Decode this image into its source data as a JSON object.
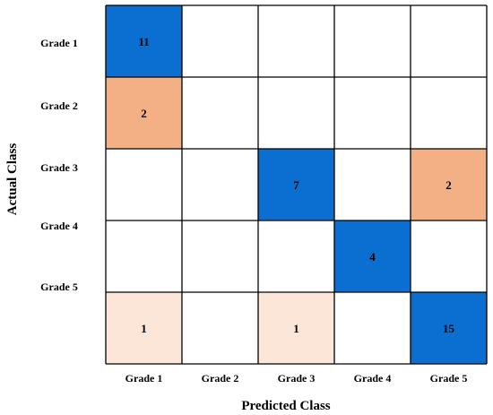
{
  "chart_data": {
    "type": "heatmap",
    "title": "",
    "xlabel": "Predicted Class",
    "ylabel": "Actual Class",
    "x_categories": [
      "Grade 1",
      "Grade 2",
      "Grade 3",
      "Grade 4",
      "Grade 5"
    ],
    "y_categories": [
      "Grade 1",
      "Grade 2",
      "Grade 3",
      "Grade 4",
      "Grade 5"
    ],
    "values": [
      [
        11,
        null,
        null,
        null,
        null
      ],
      [
        2,
        null,
        null,
        null,
        null
      ],
      [
        null,
        null,
        7,
        null,
        2
      ],
      [
        null,
        null,
        null,
        4,
        null
      ],
      [
        1,
        null,
        1,
        null,
        15
      ]
    ],
    "cell_labels": [
      [
        "11",
        "",
        "",
        "",
        ""
      ],
      [
        "2",
        "",
        "",
        "",
        ""
      ],
      [
        "",
        "",
        "7",
        "",
        "2"
      ],
      [
        "",
        "",
        "",
        "4",
        ""
      ],
      [
        "1",
        "",
        "1",
        "",
        "15"
      ]
    ],
    "colors": {
      "correct": "#0a6fd0",
      "error_high": "#f2b084",
      "error_mid": "#f7cdae",
      "error_low": "#fbe6d8",
      "empty": "#ffffff",
      "grid": "#000000"
    },
    "grid": true,
    "legend": "none"
  }
}
